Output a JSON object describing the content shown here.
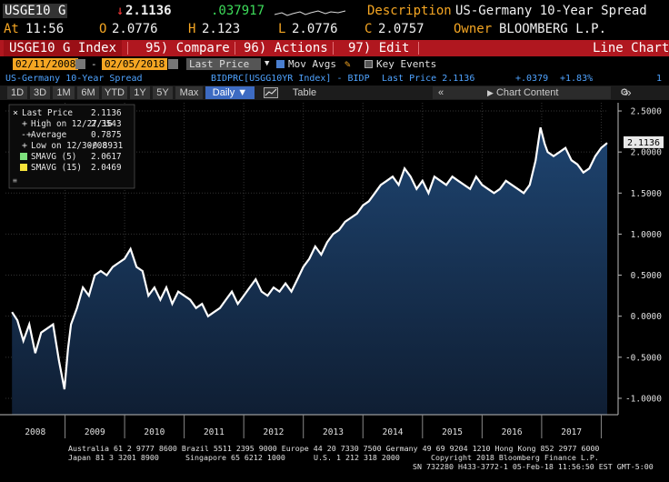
{
  "header": {
    "ticker": "USGE10 G",
    "last_arrow": "↓",
    "last": "2.1136",
    "change": ".037917",
    "description_label": "Description",
    "description": "US-Germany 10-Year Spread",
    "at_label": "At",
    "time": "11:56",
    "open_label": "O",
    "open": "2.0776",
    "high_label": "H",
    "high": "2.123",
    "low_label": "L",
    "low": "2.0776",
    "close_label": "C",
    "close": "2.0757",
    "owner_label": "Owner",
    "owner": "BLOOMBERG L.P."
  },
  "toolbar": {
    "index": "USGE10 G Index",
    "compare": "95) Compare",
    "actions": "96) Actions",
    "edit": "97) Edit",
    "chart_type": "Line Chart"
  },
  "daterow": {
    "start_date": "02/11/2008",
    "end_date": "02/05/2018",
    "price_field": "Last Price",
    "mov_avgs": "Mov Avgs",
    "key_events": "Key Events"
  },
  "inforow": {
    "name": "US-Germany 10-Year Spread",
    "formula": "BIDPRC[USGG10YR Index] - BIDP",
    "last_price": "Last Price 2.1136",
    "chg": "+.0379",
    "chg_pct": "+1.83%",
    "page": "1"
  },
  "periods": [
    "1D",
    "3D",
    "1M",
    "6M",
    "YTD",
    "1Y",
    "5Y",
    "Max"
  ],
  "frequency": "Daily ▼",
  "table_label": "Table",
  "chart_content_label": "Chart Content",
  "icons": {
    "calendar": "calendar-icon",
    "pencil": "pencil-icon",
    "table": "table-icon",
    "gear": "gear-icon",
    "collapse": "double-chevron-left-icon",
    "expand": "double-chevron-right-icon"
  },
  "legend": [
    {
      "label": "Last Price",
      "value": "2.1136",
      "marker": "x"
    },
    {
      "label": "High on 12/27/16",
      "value": "2.3543",
      "marker": "+"
    },
    {
      "label": "Average",
      "value": "0.7875",
      "marker": "-"
    },
    {
      "label": "Low on 12/30/08",
      "value": "-0.8931",
      "marker": "+"
    },
    {
      "label": "SMAVG (5)",
      "value": "2.0617",
      "marker": "green"
    },
    {
      "label": "SMAVG (15)",
      "value": "2.0469",
      "marker": "yellow"
    }
  ],
  "colors": {
    "orange": "#f5a623",
    "red_bar": "#b0171f",
    "blue_text": "#4fa3ff",
    "area_top": "#1e4470",
    "area_bottom": "#0f1e33",
    "series": "#ffffff"
  },
  "chart_data": {
    "type": "area",
    "x_ticks": [
      "2008",
      "2009",
      "2010",
      "2011",
      "2012",
      "2013",
      "2014",
      "2015",
      "2016",
      "2017"
    ],
    "y_ticks": [
      "2.5000",
      "2.0000",
      "1.5000",
      "1.0000",
      "0.5000",
      "0.0000",
      "-0.5000",
      "-1.0000"
    ],
    "ylim": [
      -1.2,
      2.6
    ],
    "last_label": "2.1136",
    "x": [
      2008.11,
      2008.2,
      2008.3,
      2008.4,
      2008.5,
      2008.6,
      2008.7,
      2008.8,
      2008.9,
      2008.99,
      2009.05,
      2009.1,
      2009.2,
      2009.3,
      2009.4,
      2009.5,
      2009.6,
      2009.7,
      2009.8,
      2009.9,
      2010.0,
      2010.1,
      2010.2,
      2010.3,
      2010.4,
      2010.5,
      2010.6,
      2010.7,
      2010.8,
      2010.9,
      2011.0,
      2011.1,
      2011.2,
      2011.3,
      2011.4,
      2011.5,
      2011.6,
      2011.7,
      2011.8,
      2011.9,
      2012.0,
      2012.1,
      2012.2,
      2012.3,
      2012.4,
      2012.5,
      2012.6,
      2012.7,
      2012.8,
      2012.9,
      2013.0,
      2013.1,
      2013.2,
      2013.3,
      2013.4,
      2013.5,
      2013.6,
      2013.7,
      2013.8,
      2013.9,
      2014.0,
      2014.1,
      2014.2,
      2014.3,
      2014.4,
      2014.5,
      2014.6,
      2014.7,
      2014.8,
      2014.9,
      2015.0,
      2015.1,
      2015.2,
      2015.3,
      2015.4,
      2015.5,
      2015.6,
      2015.7,
      2015.8,
      2015.9,
      2016.0,
      2016.1,
      2016.2,
      2016.3,
      2016.4,
      2016.5,
      2016.6,
      2016.7,
      2016.8,
      2016.9,
      2016.98,
      2017.05,
      2017.1,
      2017.2,
      2017.3,
      2017.4,
      2017.5,
      2017.6,
      2017.7,
      2017.8,
      2017.9,
      2018.0,
      2018.1
    ],
    "y": [
      0.05,
      -0.05,
      -0.3,
      -0.1,
      -0.45,
      -0.2,
      -0.15,
      -0.1,
      -0.55,
      -0.89,
      -0.4,
      -0.1,
      0.1,
      0.35,
      0.25,
      0.5,
      0.55,
      0.5,
      0.6,
      0.65,
      0.7,
      0.82,
      0.6,
      0.55,
      0.25,
      0.35,
      0.2,
      0.35,
      0.15,
      0.3,
      0.25,
      0.2,
      0.1,
      0.15,
      0.0,
      0.05,
      0.1,
      0.2,
      0.3,
      0.15,
      0.25,
      0.35,
      0.45,
      0.3,
      0.25,
      0.35,
      0.3,
      0.4,
      0.3,
      0.45,
      0.6,
      0.7,
      0.85,
      0.75,
      0.9,
      1.0,
      1.05,
      1.15,
      1.2,
      1.25,
      1.35,
      1.4,
      1.5,
      1.6,
      1.65,
      1.7,
      1.6,
      1.8,
      1.7,
      1.55,
      1.65,
      1.5,
      1.7,
      1.65,
      1.6,
      1.7,
      1.65,
      1.6,
      1.55,
      1.7,
      1.6,
      1.55,
      1.5,
      1.55,
      1.65,
      1.6,
      1.55,
      1.5,
      1.6,
      1.9,
      2.3,
      2.1,
      2.0,
      1.95,
      2.0,
      2.05,
      1.9,
      1.85,
      1.75,
      1.8,
      1.95,
      2.05,
      2.11
    ]
  },
  "footer": {
    "line1": "Australia 61 2 9777 8600 Brazil 5511 2395 9000 Europe 44 20 7330 7500 Germany 49 69 9204 1210 Hong Kong 852 2977 6000",
    "line2a": "Japan 81 3 3201 8900",
    "line2b": "Singapore 65 6212 1000",
    "line2c": "U.S. 1 212 318 2000",
    "line2d": "Copyright 2018 Bloomberg Finance L.P.",
    "line3": "SN 732280 H433-3772-1 05-Feb-18 11:56:50 EST  GMT-5:00"
  }
}
